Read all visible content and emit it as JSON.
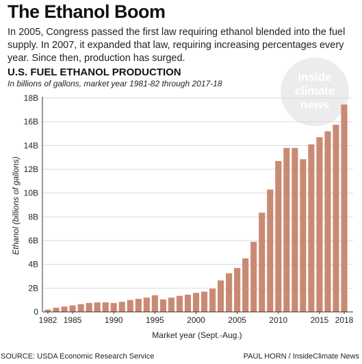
{
  "headline": "The Ethanol Boom",
  "intro": "In 2005, Congress passed the first law requiring ethanol blended into the fuel supply. In 2007, it expanded that law, requiring increasing percentages every year. Since then, production has surged.",
  "logo": {
    "line1": "inside",
    "line2": "climate",
    "line3": "news"
  },
  "footer": {
    "source": "SOURCE: USDA Economic Research Service",
    "credit": "PAUL HORN / InsideClimate News"
  },
  "colors": {
    "bar": "#c98a74",
    "grid": "#d9d9d9",
    "axis": "#333333"
  },
  "chart_data": {
    "type": "bar",
    "title": "U.S. FUEL ETHANOL PRODUCTION",
    "subtitle": "In billions of gallons, market year 1981-82 through 2017-18",
    "xlabel": "Market year (Sept.-Aug.)",
    "ylabel": "Ethanol (billions of gallons)",
    "ylim": [
      0,
      18
    ],
    "yticks": [
      0,
      2,
      4,
      6,
      8,
      10,
      12,
      14,
      16,
      18
    ],
    "ytick_labels": [
      "0",
      "2B",
      "4B",
      "6B",
      "8B",
      "10B",
      "12B",
      "14B",
      "16B",
      "18B"
    ],
    "xtick_labels": [
      "1982",
      "1985",
      "1990",
      "1995",
      "2000",
      "2005",
      "2010",
      "2015",
      "2018"
    ],
    "grid": true,
    "categories": [
      1982,
      1983,
      1984,
      1985,
      1986,
      1987,
      1988,
      1989,
      1990,
      1991,
      1992,
      1993,
      1994,
      1995,
      1996,
      1997,
      1998,
      1999,
      2000,
      2001,
      2002,
      2003,
      2004,
      2005,
      2006,
      2007,
      2008,
      2009,
      2010,
      2011,
      2012,
      2013,
      2014,
      2015,
      2016,
      2017,
      2018
    ],
    "values": [
      0.2,
      0.35,
      0.45,
      0.55,
      0.65,
      0.75,
      0.8,
      0.8,
      0.75,
      0.85,
      1.0,
      1.1,
      1.2,
      1.4,
      1.05,
      1.2,
      1.35,
      1.45,
      1.6,
      1.7,
      1.95,
      2.65,
      3.25,
      3.7,
      4.5,
      5.9,
      8.35,
      10.3,
      12.7,
      13.8,
      13.8,
      12.85,
      14.1,
      14.7,
      15.2,
      15.75,
      17.45
    ]
  }
}
